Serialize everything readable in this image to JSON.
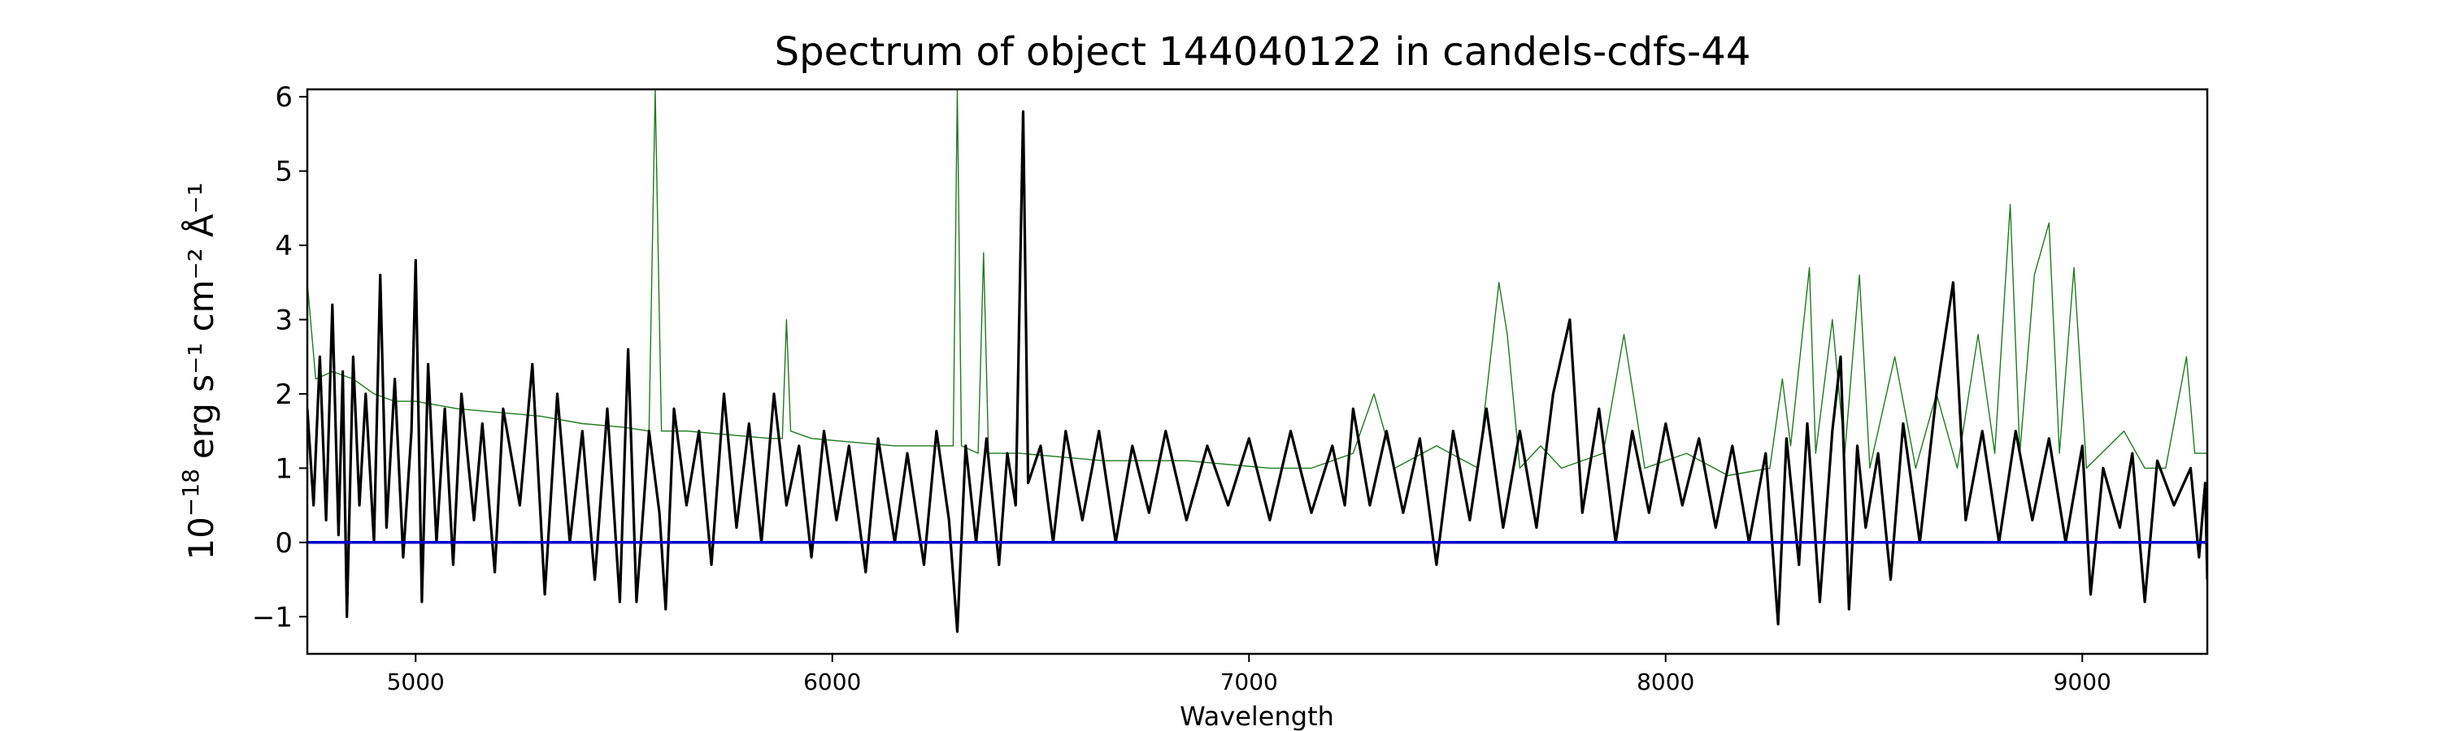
{
  "chart_data": {
    "type": "line",
    "title": "Spectrum of object 144040122 in candels-cdfs-44",
    "xlabel": "Wavelength",
    "ylabel_parts": {
      "base": "10",
      "exp": "−18",
      "units": "erg s⁻¹ cm⁻² Å⁻¹"
    },
    "xlim": [
      4740,
      9300
    ],
    "ylim": [
      -1.5,
      6.1
    ],
    "x_ticks": [
      5000,
      6000,
      7000,
      8000,
      9000
    ],
    "x_tick_labels": [
      "5000",
      "6000",
      "7000",
      "8000",
      "9000"
    ],
    "y_ticks": [
      -1,
      0,
      1,
      2,
      3,
      4,
      5,
      6
    ],
    "y_tick_labels": [
      "−1",
      "0",
      "1",
      "2",
      "3",
      "4",
      "5",
      "6"
    ],
    "grid": false,
    "series": [
      {
        "color": "#1f7a1f",
        "style": "thin",
        "points": [
          [
            4740,
            3.5
          ],
          [
            4760,
            2.2
          ],
          [
            4800,
            2.3
          ],
          [
            4850,
            2.2
          ],
          [
            4900,
            2.0
          ],
          [
            4950,
            1.9
          ],
          [
            5000,
            1.9
          ],
          [
            5100,
            1.8
          ],
          [
            5200,
            1.75
          ],
          [
            5300,
            1.7
          ],
          [
            5400,
            1.6
          ],
          [
            5500,
            1.55
          ],
          [
            5560,
            1.5
          ],
          [
            5575,
            6.1
          ],
          [
            5590,
            1.5
          ],
          [
            5650,
            1.5
          ],
          [
            5750,
            1.45
          ],
          [
            5850,
            1.4
          ],
          [
            5880,
            1.4
          ],
          [
            5890,
            3.0
          ],
          [
            5900,
            1.5
          ],
          [
            5950,
            1.4
          ],
          [
            6050,
            1.35
          ],
          [
            6150,
            1.3
          ],
          [
            6250,
            1.3
          ],
          [
            6290,
            1.3
          ],
          [
            6300,
            6.1
          ],
          [
            6310,
            1.3
          ],
          [
            6350,
            1.2
          ],
          [
            6363,
            3.9
          ],
          [
            6375,
            1.2
          ],
          [
            6450,
            1.2
          ],
          [
            6550,
            1.15
          ],
          [
            6650,
            1.1
          ],
          [
            6750,
            1.1
          ],
          [
            6850,
            1.1
          ],
          [
            6950,
            1.05
          ],
          [
            7050,
            1.0
          ],
          [
            7150,
            1.0
          ],
          [
            7250,
            1.2
          ],
          [
            7300,
            2.0
          ],
          [
            7350,
            1.0
          ],
          [
            7450,
            1.3
          ],
          [
            7550,
            1.0
          ],
          [
            7600,
            3.5
          ],
          [
            7620,
            2.8
          ],
          [
            7650,
            1.0
          ],
          [
            7700,
            1.3
          ],
          [
            7750,
            1.0
          ],
          [
            7850,
            1.2
          ],
          [
            7900,
            2.8
          ],
          [
            7950,
            1.0
          ],
          [
            8050,
            1.2
          ],
          [
            8150,
            0.9
          ],
          [
            8250,
            1.0
          ],
          [
            8280,
            2.2
          ],
          [
            8300,
            1.3
          ],
          [
            8345,
            3.7
          ],
          [
            8360,
            1.2
          ],
          [
            8400,
            3.0
          ],
          [
            8430,
            1.2
          ],
          [
            8465,
            3.6
          ],
          [
            8490,
            1.0
          ],
          [
            8550,
            2.5
          ],
          [
            8600,
            1.0
          ],
          [
            8650,
            2.0
          ],
          [
            8700,
            1.0
          ],
          [
            8750,
            2.8
          ],
          [
            8790,
            1.2
          ],
          [
            8827,
            4.55
          ],
          [
            8850,
            1.2
          ],
          [
            8885,
            3.6
          ],
          [
            8920,
            4.3
          ],
          [
            8945,
            1.2
          ],
          [
            8980,
            3.7
          ],
          [
            9010,
            1.0
          ],
          [
            9100,
            1.5
          ],
          [
            9150,
            1.0
          ],
          [
            9200,
            1.0
          ],
          [
            9250,
            2.5
          ],
          [
            9270,
            1.2
          ],
          [
            9300,
            1.2
          ]
        ]
      },
      {
        "color": "#000000",
        "style": "thick",
        "points": [
          [
            4740,
            1.8
          ],
          [
            4755,
            0.5
          ],
          [
            4770,
            2.5
          ],
          [
            4785,
            0.3
          ],
          [
            4800,
            3.2
          ],
          [
            4815,
            0.1
          ],
          [
            4825,
            2.3
          ],
          [
            4835,
            -1.0
          ],
          [
            4850,
            2.5
          ],
          [
            4865,
            0.5
          ],
          [
            4880,
            2.0
          ],
          [
            4900,
            0.0
          ],
          [
            4915,
            3.6
          ],
          [
            4930,
            0.2
          ],
          [
            4950,
            2.2
          ],
          [
            4970,
            -0.2
          ],
          [
            4990,
            1.5
          ],
          [
            5000,
            3.8
          ],
          [
            5015,
            -0.8
          ],
          [
            5030,
            2.4
          ],
          [
            5050,
            0.0
          ],
          [
            5070,
            1.8
          ],
          [
            5090,
            -0.3
          ],
          [
            5110,
            2.0
          ],
          [
            5140,
            0.3
          ],
          [
            5160,
            1.6
          ],
          [
            5190,
            -0.4
          ],
          [
            5210,
            1.8
          ],
          [
            5250,
            0.5
          ],
          [
            5280,
            2.4
          ],
          [
            5310,
            -0.7
          ],
          [
            5340,
            2.0
          ],
          [
            5370,
            0.0
          ],
          [
            5400,
            1.5
          ],
          [
            5430,
            -0.5
          ],
          [
            5460,
            1.8
          ],
          [
            5490,
            -0.8
          ],
          [
            5510,
            2.6
          ],
          [
            5530,
            -0.8
          ],
          [
            5560,
            1.5
          ],
          [
            5585,
            0.4
          ],
          [
            5600,
            -0.9
          ],
          [
            5620,
            1.8
          ],
          [
            5650,
            0.5
          ],
          [
            5680,
            1.5
          ],
          [
            5710,
            -0.3
          ],
          [
            5740,
            2.0
          ],
          [
            5770,
            0.2
          ],
          [
            5800,
            1.6
          ],
          [
            5830,
            0.0
          ],
          [
            5860,
            2.0
          ],
          [
            5890,
            0.5
          ],
          [
            5920,
            1.3
          ],
          [
            5950,
            -0.2
          ],
          [
            5980,
            1.5
          ],
          [
            6010,
            0.3
          ],
          [
            6040,
            1.3
          ],
          [
            6080,
            -0.4
          ],
          [
            6110,
            1.4
          ],
          [
            6150,
            0.0
          ],
          [
            6180,
            1.2
          ],
          [
            6220,
            -0.3
          ],
          [
            6250,
            1.5
          ],
          [
            6280,
            0.3
          ],
          [
            6300,
            -1.2
          ],
          [
            6320,
            1.3
          ],
          [
            6345,
            0.0
          ],
          [
            6370,
            1.4
          ],
          [
            6400,
            -0.3
          ],
          [
            6420,
            1.2
          ],
          [
            6440,
            0.5
          ],
          [
            6458,
            5.8
          ],
          [
            6470,
            0.8
          ],
          [
            6500,
            1.3
          ],
          [
            6530,
            0.0
          ],
          [
            6560,
            1.5
          ],
          [
            6600,
            0.3
          ],
          [
            6640,
            1.5
          ],
          [
            6680,
            0.0
          ],
          [
            6720,
            1.3
          ],
          [
            6760,
            0.4
          ],
          [
            6800,
            1.5
          ],
          [
            6850,
            0.3
          ],
          [
            6900,
            1.3
          ],
          [
            6950,
            0.5
          ],
          [
            7000,
            1.4
          ],
          [
            7050,
            0.3
          ],
          [
            7100,
            1.5
          ],
          [
            7150,
            0.4
          ],
          [
            7200,
            1.3
          ],
          [
            7230,
            0.5
          ],
          [
            7250,
            1.8
          ],
          [
            7290,
            0.5
          ],
          [
            7330,
            1.5
          ],
          [
            7370,
            0.4
          ],
          [
            7410,
            1.4
          ],
          [
            7450,
            -0.3
          ],
          [
            7490,
            1.5
          ],
          [
            7530,
            0.3
          ],
          [
            7570,
            1.8
          ],
          [
            7610,
            0.2
          ],
          [
            7650,
            1.5
          ],
          [
            7690,
            0.2
          ],
          [
            7730,
            2.0
          ],
          [
            7770,
            3.0
          ],
          [
            7800,
            0.4
          ],
          [
            7840,
            1.8
          ],
          [
            7880,
            0.0
          ],
          [
            7920,
            1.5
          ],
          [
            7960,
            0.4
          ],
          [
            8000,
            1.6
          ],
          [
            8040,
            0.5
          ],
          [
            8080,
            1.4
          ],
          [
            8120,
            0.2
          ],
          [
            8160,
            1.3
          ],
          [
            8200,
            0.0
          ],
          [
            8240,
            1.2
          ],
          [
            8270,
            -1.1
          ],
          [
            8290,
            1.4
          ],
          [
            8320,
            -0.3
          ],
          [
            8340,
            1.6
          ],
          [
            8370,
            -0.8
          ],
          [
            8400,
            1.5
          ],
          [
            8420,
            2.5
          ],
          [
            8440,
            -0.9
          ],
          [
            8460,
            1.3
          ],
          [
            8480,
            0.2
          ],
          [
            8510,
            1.2
          ],
          [
            8540,
            -0.5
          ],
          [
            8570,
            1.6
          ],
          [
            8610,
            0.0
          ],
          [
            8650,
            2.0
          ],
          [
            8690,
            3.5
          ],
          [
            8720,
            0.3
          ],
          [
            8760,
            1.5
          ],
          [
            8800,
            0.0
          ],
          [
            8840,
            1.5
          ],
          [
            8880,
            0.3
          ],
          [
            8920,
            1.4
          ],
          [
            8960,
            0.0
          ],
          [
            9000,
            1.3
          ],
          [
            9020,
            -0.7
          ],
          [
            9050,
            1.0
          ],
          [
            9090,
            0.2
          ],
          [
            9120,
            1.2
          ],
          [
            9150,
            -0.8
          ],
          [
            9180,
            1.1
          ],
          [
            9220,
            0.5
          ],
          [
            9260,
            1.0
          ],
          [
            9280,
            -0.2
          ],
          [
            9295,
            0.8
          ],
          [
            9300,
            -0.5
          ]
        ]
      },
      {
        "color": "#0000cc",
        "style": "zero",
        "points": [
          [
            4740,
            0.0
          ],
          [
            9300,
            0.0
          ]
        ]
      }
    ]
  }
}
